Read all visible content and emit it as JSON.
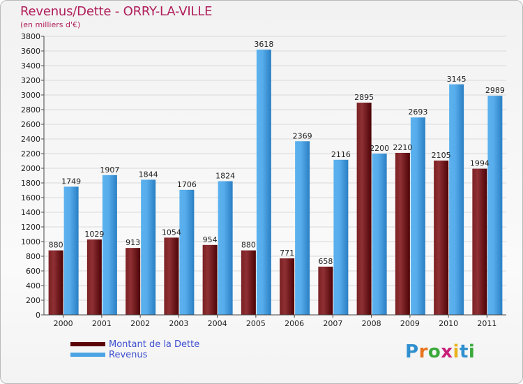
{
  "title": "Revenus/Dette - ORRY-LA-VILLE",
  "subtitle": "(en milliers d'€)",
  "brand": [
    "P",
    "r",
    "o",
    "x",
    "i",
    "t",
    "i"
  ],
  "brand_colors": [
    "#2f8fcf",
    "#e8731c",
    "#3aa83a",
    "#c7207a",
    "#e8b21c",
    "#2f8fcf",
    "#3aa83a"
  ],
  "legend": [
    {
      "label": "Montant de la Dette",
      "color": "#6e0e12"
    },
    {
      "label": "Revenus",
      "color": "#4aa3e4"
    }
  ],
  "chart_data": {
    "type": "bar",
    "title": "Revenus/Dette - ORRY-LA-VILLE",
    "subtitle": "(en milliers d'€)",
    "categories": [
      "2000",
      "2001",
      "2002",
      "2003",
      "2004",
      "2005",
      "2006",
      "2007",
      "2008",
      "2009",
      "2010",
      "2011"
    ],
    "series": [
      {
        "name": "Montant de la Dette",
        "color": "#6e0e12",
        "values": [
          880,
          1029,
          913,
          1054,
          954,
          880,
          771,
          658,
          2895,
          2210,
          2105,
          1994
        ],
        "labels": [
          "880",
          "1029",
          "913",
          "1054",
          "954",
          "880",
          "771",
          "658",
          "2895",
          "2210",
          "2105",
          "1994"
        ]
      },
      {
        "name": "Revenus",
        "color": "#4aa3e4",
        "values": [
          1749,
          1907,
          1844,
          1706,
          1824,
          3618,
          2369,
          2116,
          2200,
          2693,
          3145,
          2989
        ],
        "labels": [
          "1749",
          "1907",
          "1844",
          "1706",
          "1824",
          "3618",
          "2369",
          "2116",
          "2200",
          "2693",
          "3145",
          "2989"
        ]
      }
    ],
    "ylim": [
      0,
      3800
    ],
    "yticks": [
      0,
      200,
      400,
      600,
      800,
      1000,
      1200,
      1400,
      1600,
      1800,
      2000,
      2200,
      2400,
      2600,
      2800,
      3000,
      3200,
      3400,
      3600,
      3800
    ],
    "grid": true,
    "legend_position": "bottom-left"
  }
}
